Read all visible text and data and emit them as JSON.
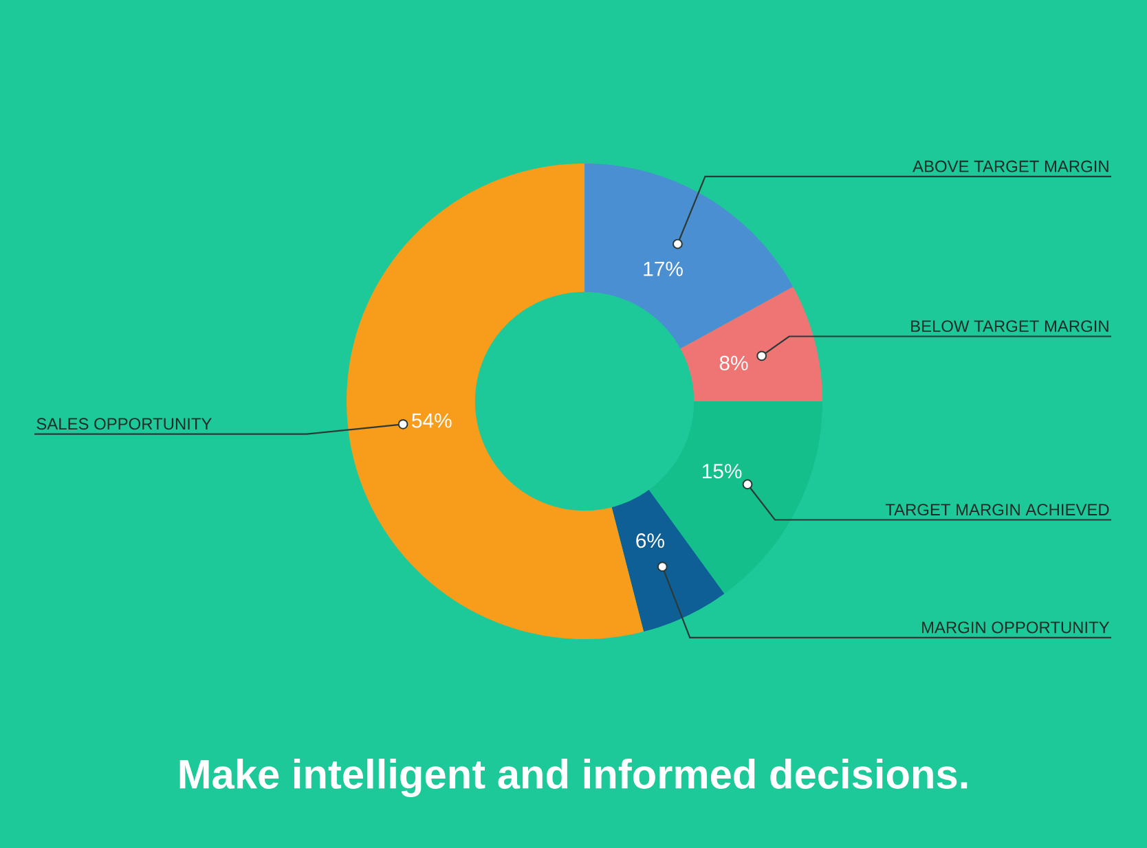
{
  "chart_data": {
    "type": "donut",
    "title": "Make intelligent and informed decisions.",
    "categories": [
      "ABOVE TARGET MARGIN",
      "BELOW TARGET MARGIN",
      "TARGET MARGIN ACHIEVED",
      "MARGIN OPPORTUNITY",
      "SALES OPPORTUNITY"
    ],
    "values": [
      17,
      8,
      15,
      6,
      54
    ],
    "colors": [
      "#4a8fd2",
      "#ef7474",
      "#14bf8c",
      "#0d5f96",
      "#f89c1c"
    ],
    "value_labels": [
      "17%",
      "8%",
      "15%",
      "6%",
      "54%"
    ]
  }
}
